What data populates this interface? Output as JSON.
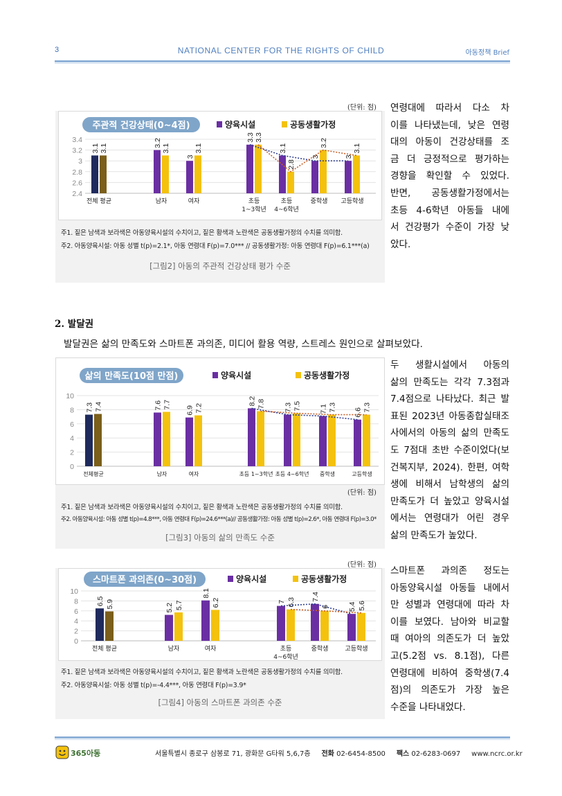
{
  "header": {
    "page_number": "3",
    "org": "NATIONAL CENTER FOR THE RIGHTS OF CHILD",
    "series": "아동정책 Brief"
  },
  "figure2": {
    "unit": "(단위: 점)",
    "caption": "[그림2] 아동의 주관적 건강상태 평가 수준",
    "notes": [
      "주1. 짙은 남색과 보라색은 아동양육시설의 수치이고, 짙은 황색과 노란색은 공동생활가정의 수치를 의미함.",
      "주2. 아동양육시설: 아동 성별 t(p)=2.1*, 아동 연령대 F(p)=7.0*** // 공동생활가정: 아동 연령대 F(p)=6.1***(a)"
    ],
    "chart_data": {
      "type": "bar",
      "title": "주관적 건강상태(0~4점)",
      "categories": [
        [
          "전체 평균"
        ],
        [
          "남자"
        ],
        [
          "여자"
        ],
        [
          "초등",
          "1~3학년"
        ],
        [
          "초등",
          "4~6학년"
        ],
        [
          "중학생"
        ],
        [
          "고등학생"
        ]
      ],
      "series": [
        {
          "name": "양육시설",
          "values": [
            3.1,
            3.2,
            3.0,
            3.3,
            3.1,
            3.0,
            3.0
          ],
          "labels": [
            "3.1",
            "3.2",
            "3",
            "3.3",
            "3.1",
            "3",
            "3"
          ]
        },
        {
          "name": "공동생활가정",
          "values": [
            3.1,
            3.1,
            3.1,
            3.3,
            2.8,
            3.2,
            3.1
          ],
          "labels": [
            "3.1",
            "3.1",
            "3.1",
            "3.3",
            "2.8",
            "3.2",
            "3.1"
          ]
        }
      ],
      "yticks": [
        "3.4",
        "3.2",
        "3",
        "2.8",
        "2.6",
        "2.4"
      ],
      "ylim": [
        2.4,
        3.4
      ],
      "legend": "top",
      "colors": {
        "series1_total": "#1f2a5c",
        "series2_total": "#7b5f1a",
        "series1": "#6a2fa3",
        "series2": "#f4c20d",
        "trend1": "#2f3f8f",
        "trend2": "#c8602a"
      }
    }
  },
  "side1": [
    "연령대에 따라서 다소 차",
    "이를 나타냈는데, 낮은 연령",
    "대의 아동이 건강상태를 조",
    "금 더 긍정적으로 평가하는",
    "경향을 확인할 수 있었다.",
    "반면,   공동생활가정에서는",
    "초등 4-6학년 아동들 내에",
    "서 건강평가 수준이 가장 낮",
    "았다."
  ],
  "section": {
    "title": "2. 발달권",
    "intro": "발달권은 삶의 만족도와 스마트폰 과의존, 미디어 활용 역량, 스트레스 원인으로 살펴보았다."
  },
  "figure3": {
    "unit": "(단위: 점)",
    "caption": "[그림3] 아동의 삶의 만족도 수준",
    "notes": [
      "주1. 짙은 남색과 보라색은 아동양육시설의 수치이고, 짙은 황색과 노란색은 공동생활가정의 수치를 의미함.",
      "주2. 아동양육시설: 아동 성별 t(p)=4.8***, 아동 연령대 F(p)=24.6***(a)// 공동생활가정: 아동 성별 t(p)=2.6*, 아동 연령대 F(p)=3.0*"
    ],
    "chart_data": {
      "type": "bar",
      "title": "삶의 만족도(10점 만점)",
      "categories": [
        [
          "전체평균"
        ],
        [
          "남자"
        ],
        [
          "여자"
        ],
        [
          "초등 1~3학년"
        ],
        [
          "초등 4~6학년"
        ],
        [
          "중학생"
        ],
        [
          "고등학생"
        ]
      ],
      "series": [
        {
          "name": "양육시설",
          "values": [
            7.3,
            7.6,
            6.9,
            8.2,
            7.3,
            7.1,
            6.6
          ],
          "labels": [
            "7.3",
            "7.6",
            "6.9",
            "8.2",
            "7.3",
            "7.1",
            "6.6"
          ]
        },
        {
          "name": "공동생활가정",
          "values": [
            7.4,
            7.7,
            7.2,
            7.8,
            7.5,
            7.3,
            7.3
          ],
          "labels": [
            "7.4",
            "7.7",
            "7.2",
            "7.8",
            "7.5",
            "7.3",
            "7.3"
          ]
        }
      ],
      "yticks": [
        "10",
        "8",
        "6",
        "4",
        "2",
        "0"
      ],
      "ylim": [
        0,
        10
      ],
      "legend": "top",
      "colors": {
        "series1_total": "#1f2a5c",
        "series2_total": "#7b5f1a",
        "series1": "#6a2fa3",
        "series2": "#f4c20d",
        "trend1": "#2f3f8f",
        "trend2": "#c8602a"
      }
    }
  },
  "side2": [
    "두 생활시설에서 아동의",
    "삶의 만족도는 각각 7.3점과",
    "7.4점으로 나타났다. 최근 발",
    "표된 2023년 아동종합실태조",
    "사에서의 아동의 삶의 만족도",
    "도 7점대 초반 수준이었다(보",
    "건복지부, 2024). 한편, 여학",
    "생에 비해서 남학생의 삶의",
    "만족도가 더 높았고 양육시설",
    "에서는 연령대가 어린 경우",
    "삶의 만족도가 높았다."
  ],
  "figure4": {
    "unit": "(단위: 점)",
    "caption": "[그림4] 아동의 스마트폰 과의존 수준",
    "notes": [
      "주1. 짙은 남색과 보라색은 아동양육시설의 수치이고, 짙은 황색과 노란색은 공동생활가정의 수치를 의미함.",
      "주2. 아동양육시설: 아동 성별 t(p)=-4.4***, 아동 연령대 F(p)=3.9*"
    ],
    "chart_data": {
      "type": "bar",
      "title": "스마트폰 과의존(0~30점)",
      "categories": [
        [
          "전체 평균"
        ],
        [
          "남자"
        ],
        [
          "여자"
        ],
        [
          "초등",
          "4~6학년"
        ],
        [
          "중학생"
        ],
        [
          "고등학생"
        ]
      ],
      "series": [
        {
          "name": "양육시설",
          "values": [
            6.5,
            5.2,
            8.1,
            7.0,
            7.4,
            5.4
          ],
          "labels": [
            "6.5",
            "5.2",
            "8.1",
            "7",
            "7.4",
            "5.4"
          ]
        },
        {
          "name": "공동생활가정",
          "values": [
            5.9,
            5.7,
            6.2,
            6.3,
            6.0,
            5.6
          ],
          "labels": [
            "5.9",
            "5.7",
            "6.2",
            "6.3",
            "6",
            "5.6"
          ]
        }
      ],
      "yticks": [
        "10",
        "8",
        "6",
        "4",
        "2",
        "0"
      ],
      "ylim": [
        0,
        10
      ],
      "legend": "top",
      "colors": {
        "series1_total": "#1f2a5c",
        "series2_total": "#7b5f1a",
        "series1": "#6a2fa3",
        "series2": "#f4c20d",
        "trend1": "#2f3f8f",
        "trend2": "#c8602a"
      }
    }
  },
  "side3": [
    "스마트폰 과의존 정도는",
    "아동양육시설 아동들 내에서",
    "만 성별과 연령대에 따라 차",
    "이를 보였다. 남아와 비교할",
    "때 여아의 의존도가 더 높았",
    "고(5.2점 vs. 8.1점), 다른",
    "연령대에 비하여 중학생(7.4",
    "점)의 의존도가 가장 높은",
    "수준을 나타내었다."
  ],
  "footer": {
    "logo_text": "365아동",
    "address": "서울특별시 종로구 삼봉로 71, 광화문 G타워 5,6,7층",
    "tel_label": "전화",
    "tel": "02-6454-8500",
    "fax_label": "팩스",
    "fax": "02-6283-0697",
    "web": "www.ncrc.or.kr"
  }
}
